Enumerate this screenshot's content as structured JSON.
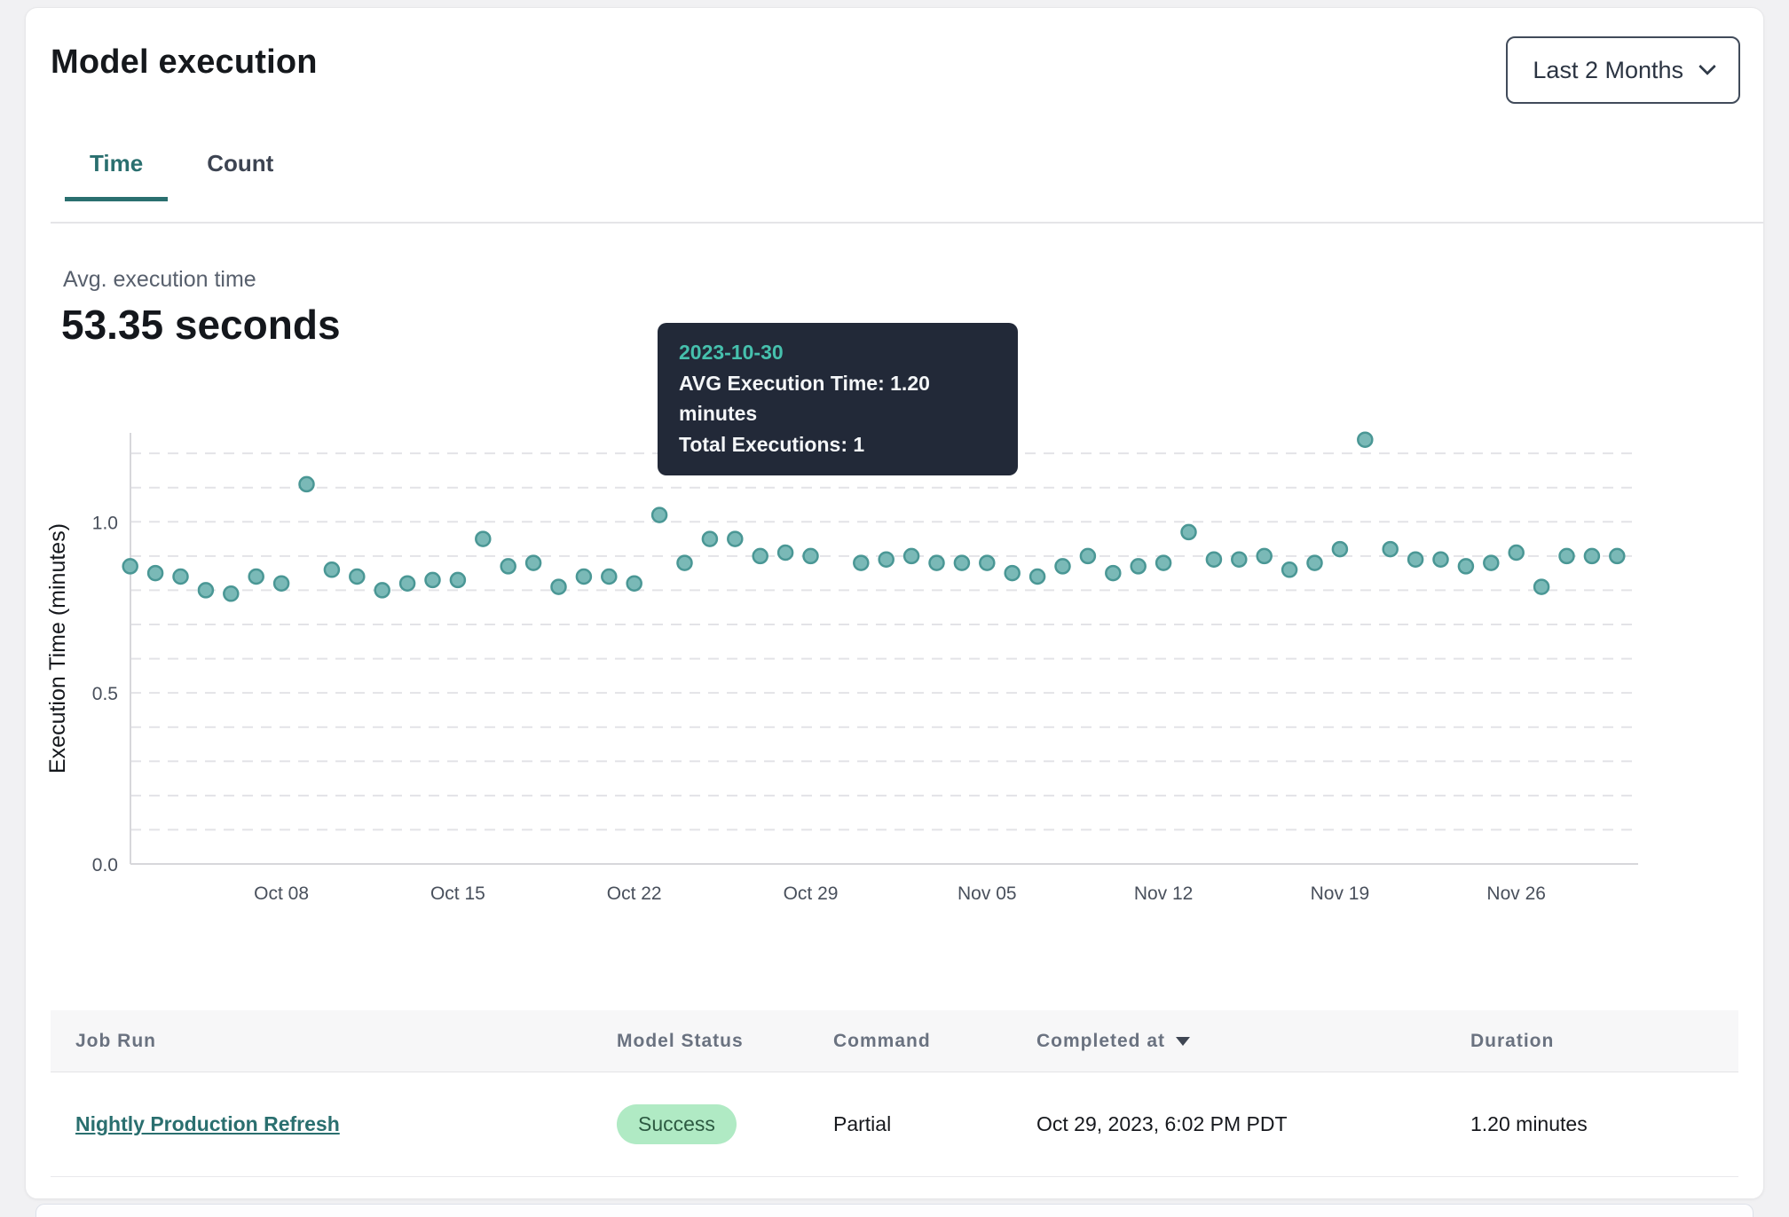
{
  "header": {
    "title": "Model execution",
    "range_selector": {
      "label": "Last 2 Months"
    }
  },
  "tabs": [
    {
      "label": "Time",
      "active": true
    },
    {
      "label": "Count",
      "active": false
    }
  ],
  "kpi": {
    "label": "Avg. execution time",
    "value": "53.35 seconds"
  },
  "tooltip": {
    "date": "2023-10-30",
    "line1": "AVG Execution Time: 1.20 minutes",
    "line2": "Total Executions: 1"
  },
  "chart_data": {
    "type": "scatter",
    "ylabel": "Execution Time (minutes)",
    "ylim": [
      0,
      1.26
    ],
    "grid_interval": 0.1,
    "grid_on": true,
    "y_ticks": [
      0.0,
      0.5,
      1.0
    ],
    "x_ticks": [
      {
        "date": "2023-10-08",
        "label": "Oct 08"
      },
      {
        "date": "2023-10-15",
        "label": "Oct 15"
      },
      {
        "date": "2023-10-22",
        "label": "Oct 22"
      },
      {
        "date": "2023-10-29",
        "label": "Oct 29"
      },
      {
        "date": "2023-11-05",
        "label": "Nov 05"
      },
      {
        "date": "2023-11-12",
        "label": "Nov 12"
      },
      {
        "date": "2023-11-19",
        "label": "Nov 19"
      },
      {
        "date": "2023-11-26",
        "label": "Nov 26"
      }
    ],
    "highlight_date": "2023-10-30",
    "colors": {
      "point_fill": "#7ab9b7",
      "point_stroke": "#4a9795",
      "highlight": "#4b8b93",
      "accent_teal": "#2a6f6f",
      "tooltip_bg": "#222938",
      "tooltip_date": "#46c0ad"
    },
    "points": [
      {
        "date": "2023-10-02",
        "value": 0.87
      },
      {
        "date": "2023-10-03",
        "value": 0.85
      },
      {
        "date": "2023-10-04",
        "value": 0.84
      },
      {
        "date": "2023-10-05",
        "value": 0.8
      },
      {
        "date": "2023-10-06",
        "value": 0.79
      },
      {
        "date": "2023-10-07",
        "value": 0.84
      },
      {
        "date": "2023-10-08",
        "value": 0.82
      },
      {
        "date": "2023-10-09",
        "value": 1.11
      },
      {
        "date": "2023-10-10",
        "value": 0.86
      },
      {
        "date": "2023-10-11",
        "value": 0.84
      },
      {
        "date": "2023-10-12",
        "value": 0.8
      },
      {
        "date": "2023-10-13",
        "value": 0.82
      },
      {
        "date": "2023-10-14",
        "value": 0.83
      },
      {
        "date": "2023-10-15",
        "value": 0.83
      },
      {
        "date": "2023-10-16",
        "value": 0.95
      },
      {
        "date": "2023-10-17",
        "value": 0.87
      },
      {
        "date": "2023-10-18",
        "value": 0.88
      },
      {
        "date": "2023-10-19",
        "value": 0.81
      },
      {
        "date": "2023-10-20",
        "value": 0.84
      },
      {
        "date": "2023-10-21",
        "value": 0.84
      },
      {
        "date": "2023-10-22",
        "value": 0.82
      },
      {
        "date": "2023-10-23",
        "value": 1.02
      },
      {
        "date": "2023-10-24",
        "value": 0.88
      },
      {
        "date": "2023-10-25",
        "value": 0.95
      },
      {
        "date": "2023-10-26",
        "value": 0.95
      },
      {
        "date": "2023-10-27",
        "value": 0.9
      },
      {
        "date": "2023-10-28",
        "value": 0.91
      },
      {
        "date": "2023-10-29",
        "value": 0.9
      },
      {
        "date": "2023-10-30",
        "value": 1.2
      },
      {
        "date": "2023-10-31",
        "value": 0.88
      },
      {
        "date": "2023-11-01",
        "value": 0.89
      },
      {
        "date": "2023-11-02",
        "value": 0.9
      },
      {
        "date": "2023-11-03",
        "value": 0.88
      },
      {
        "date": "2023-11-04",
        "value": 0.88
      },
      {
        "date": "2023-11-05",
        "value": 0.88
      },
      {
        "date": "2023-11-06",
        "value": 0.85
      },
      {
        "date": "2023-11-07",
        "value": 0.84
      },
      {
        "date": "2023-11-08",
        "value": 0.87
      },
      {
        "date": "2023-11-09",
        "value": 0.9
      },
      {
        "date": "2023-11-10",
        "value": 0.85
      },
      {
        "date": "2023-11-11",
        "value": 0.87
      },
      {
        "date": "2023-11-12",
        "value": 0.88
      },
      {
        "date": "2023-11-13",
        "value": 0.97
      },
      {
        "date": "2023-11-14",
        "value": 0.89
      },
      {
        "date": "2023-11-15",
        "value": 0.89
      },
      {
        "date": "2023-11-16",
        "value": 0.9
      },
      {
        "date": "2023-11-17",
        "value": 0.86
      },
      {
        "date": "2023-11-18",
        "value": 0.88
      },
      {
        "date": "2023-11-19",
        "value": 0.92
      },
      {
        "date": "2023-11-20",
        "value": 1.24
      },
      {
        "date": "2023-11-21",
        "value": 0.92
      },
      {
        "date": "2023-11-22",
        "value": 0.89
      },
      {
        "date": "2023-11-23",
        "value": 0.89
      },
      {
        "date": "2023-11-24",
        "value": 0.87
      },
      {
        "date": "2023-11-25",
        "value": 0.88
      },
      {
        "date": "2023-11-26",
        "value": 0.91
      },
      {
        "date": "2023-11-27",
        "value": 0.81
      },
      {
        "date": "2023-11-28",
        "value": 0.9
      },
      {
        "date": "2023-11-29",
        "value": 0.9
      },
      {
        "date": "2023-11-30",
        "value": 0.9
      }
    ]
  },
  "table": {
    "columns": [
      "Job Run",
      "Model Status",
      "Command",
      "Completed at",
      "Duration"
    ],
    "sorted_column": "Completed at",
    "rows": [
      {
        "job_run": "Nightly Production Refresh",
        "model_status": "Success",
        "command": "Partial",
        "completed_at": "Oct 29, 2023, 6:02 PM PDT",
        "duration": "1.20 minutes"
      }
    ],
    "status_colors": {
      "success_bg": "#b0eac4",
      "success_text": "#2d5a42"
    }
  }
}
